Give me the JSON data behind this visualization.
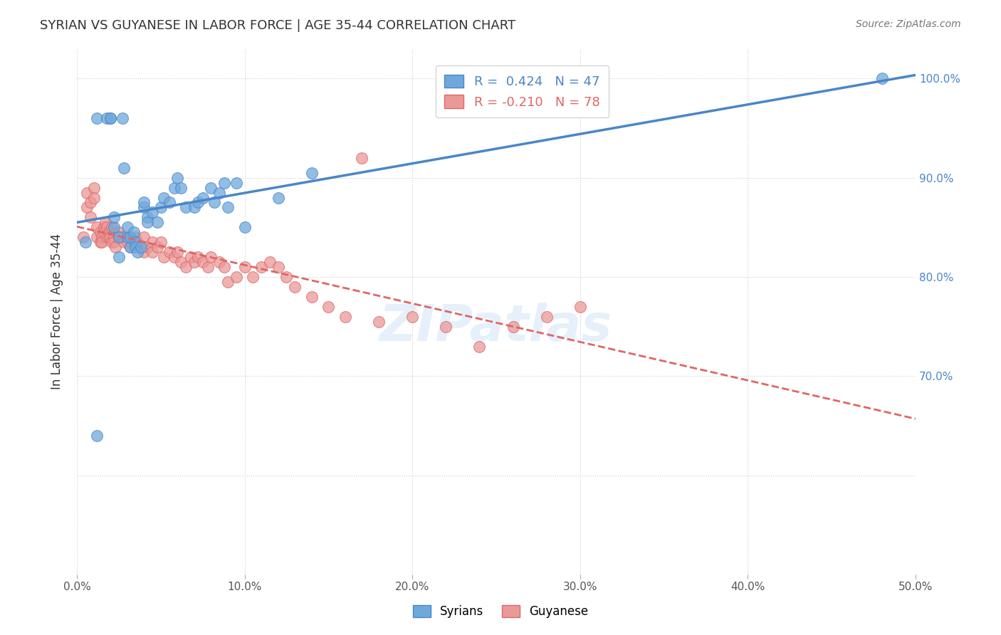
{
  "title": "SYRIAN VS GUYANESE IN LABOR FORCE | AGE 35-44 CORRELATION CHART",
  "source": "Source: ZipAtlas.com",
  "ylabel": "In Labor Force | Age 35-44",
  "xlim": [
    0.0,
    0.5
  ],
  "ylim": [
    0.5,
    1.03
  ],
  "xticks": [
    0.0,
    0.1,
    0.2,
    0.3,
    0.4,
    0.5
  ],
  "xticklabels": [
    "0.0%",
    "10.0%",
    "20.0%",
    "30.0%",
    "40.0%",
    "50.0%"
  ],
  "yticks": [
    0.5,
    0.6,
    0.7,
    0.8,
    0.9,
    1.0
  ],
  "right_yticks": [
    0.7,
    0.8,
    0.9,
    1.0
  ],
  "right_yticklabels": [
    "70.0%",
    "80.0%",
    "90.0%",
    "100.0%"
  ],
  "syrians_R": 0.424,
  "syrians_N": 47,
  "guyanese_R": -0.21,
  "guyanese_N": 78,
  "syrians_color": "#6fa8dc",
  "guyanese_color": "#ea9999",
  "syrians_line_color": "#4a86c8",
  "guyanese_line_color": "#e06666",
  "legend_label_syrians": "Syrians",
  "legend_label_guyanese": "Guyanese",
  "background_color": "#ffffff",
  "grid_color": "#cccccc",
  "title_color": "#333333",
  "axis_label_color": "#333333",
  "right_tick_color": "#4a86c8",
  "watermark_text": "ZIPatlas",
  "watermark_color": "#d0e4f7",
  "syrians_x": [
    0.005,
    0.012,
    0.018,
    0.02,
    0.02,
    0.022,
    0.022,
    0.025,
    0.025,
    0.027,
    0.028,
    0.03,
    0.03,
    0.032,
    0.032,
    0.034,
    0.035,
    0.035,
    0.036,
    0.038,
    0.04,
    0.04,
    0.042,
    0.042,
    0.045,
    0.048,
    0.05,
    0.052,
    0.055,
    0.058,
    0.06,
    0.062,
    0.065,
    0.07,
    0.072,
    0.075,
    0.08,
    0.082,
    0.085,
    0.088,
    0.09,
    0.095,
    0.1,
    0.12,
    0.14,
    0.48,
    0.012
  ],
  "syrians_y": [
    0.835,
    0.96,
    0.96,
    0.96,
    0.96,
    0.85,
    0.86,
    0.82,
    0.84,
    0.96,
    0.91,
    0.84,
    0.85,
    0.83,
    0.84,
    0.845,
    0.835,
    0.83,
    0.825,
    0.83,
    0.87,
    0.875,
    0.86,
    0.855,
    0.865,
    0.855,
    0.87,
    0.88,
    0.875,
    0.89,
    0.9,
    0.89,
    0.87,
    0.87,
    0.875,
    0.88,
    0.89,
    0.875,
    0.885,
    0.895,
    0.87,
    0.895,
    0.85,
    0.88,
    0.905,
    1.0,
    0.64
  ],
  "guyanese_x": [
    0.004,
    0.006,
    0.006,
    0.008,
    0.008,
    0.01,
    0.01,
    0.012,
    0.012,
    0.014,
    0.014,
    0.015,
    0.015,
    0.016,
    0.016,
    0.017,
    0.018,
    0.018,
    0.019,
    0.019,
    0.02,
    0.02,
    0.021,
    0.021,
    0.022,
    0.022,
    0.023,
    0.025,
    0.025,
    0.027,
    0.028,
    0.03,
    0.03,
    0.032,
    0.035,
    0.036,
    0.038,
    0.04,
    0.04,
    0.042,
    0.045,
    0.045,
    0.048,
    0.05,
    0.052,
    0.055,
    0.058,
    0.06,
    0.062,
    0.065,
    0.068,
    0.07,
    0.072,
    0.075,
    0.078,
    0.08,
    0.085,
    0.088,
    0.09,
    0.095,
    0.1,
    0.105,
    0.11,
    0.115,
    0.12,
    0.125,
    0.13,
    0.14,
    0.15,
    0.16,
    0.17,
    0.18,
    0.2,
    0.22,
    0.24,
    0.26,
    0.28,
    0.3
  ],
  "guyanese_y": [
    0.84,
    0.87,
    0.885,
    0.875,
    0.86,
    0.89,
    0.88,
    0.84,
    0.85,
    0.835,
    0.845,
    0.84,
    0.835,
    0.85,
    0.845,
    0.855,
    0.85,
    0.84,
    0.845,
    0.84,
    0.845,
    0.84,
    0.835,
    0.85,
    0.84,
    0.835,
    0.83,
    0.845,
    0.84,
    0.84,
    0.835,
    0.84,
    0.835,
    0.83,
    0.84,
    0.835,
    0.83,
    0.84,
    0.825,
    0.83,
    0.835,
    0.825,
    0.83,
    0.835,
    0.82,
    0.825,
    0.82,
    0.825,
    0.815,
    0.81,
    0.82,
    0.815,
    0.82,
    0.815,
    0.81,
    0.82,
    0.815,
    0.81,
    0.795,
    0.8,
    0.81,
    0.8,
    0.81,
    0.815,
    0.81,
    0.8,
    0.79,
    0.78,
    0.77,
    0.76,
    0.92,
    0.755,
    0.76,
    0.75,
    0.73,
    0.75,
    0.76,
    0.77
  ]
}
